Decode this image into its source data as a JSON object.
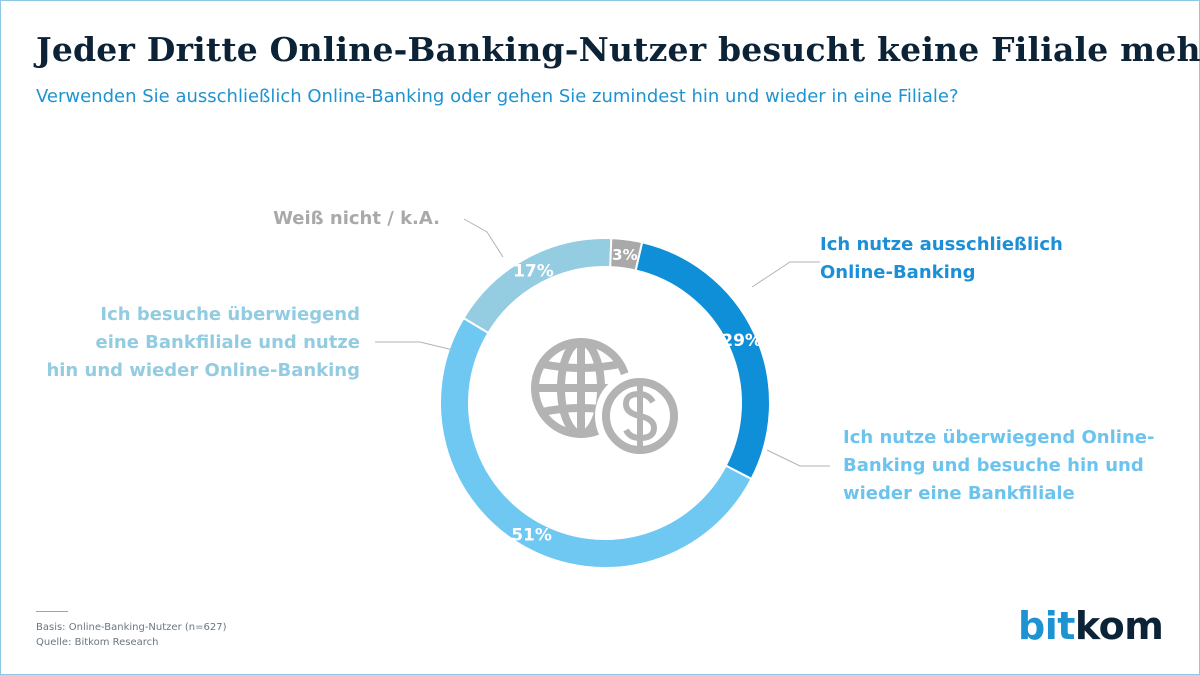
{
  "title": "Jeder Dritte Online-Banking-Nutzer besucht keine Filiale mehr",
  "subtitle": "Verwenden Sie ausschließlich Online-Banking oder gehen Sie zumindest hin und wieder in eine Filiale?",
  "chart_data": {
    "type": "pie",
    "style": "donut",
    "title": "Jeder Dritte Online-Banking-Nutzer besucht keine Filiale mehr",
    "subtitle": "Verwenden Sie ausschließlich Online-Banking oder gehen Sie zumindest hin und wieder in eine Filiale?",
    "unit": "%",
    "center_icon": "globe-dollar-icon",
    "slices": [
      {
        "key": "online",
        "label": "Ich nutze ausschließlich Online-Banking",
        "lines": [
          "Ich nutze ausschließlich",
          "Online-Banking"
        ],
        "value": 29,
        "value_label": "29%",
        "color": "#0f8fd8"
      },
      {
        "key": "mostly_online",
        "label": "Ich nutze überwiegend Online-Banking und besuche hin und wieder eine Bankfiliale",
        "lines": [
          "Ich nutze überwiegend Online-",
          "Banking und besuche hin und",
          "wieder eine Bankfiliale"
        ],
        "value": 51,
        "value_label": "51%",
        "color": "#6ec8f2"
      },
      {
        "key": "mostly_branch",
        "label": "Ich besuche überwiegend eine Bankfiliale und nutze hin und wieder Online-Banking",
        "lines": [
          "Ich besuche überwiegend",
          "eine Bankfiliale und nutze",
          "hin und wieder Online-Banking"
        ],
        "value": 17,
        "value_label": "17%",
        "color": "#94cce2"
      },
      {
        "key": "dk",
        "label": "Weiß nicht / k.A.",
        "lines": [
          "Weiß nicht / k.A."
        ],
        "value": 3,
        "value_label": "3%",
        "color": "#a9a9a9"
      }
    ]
  },
  "footer": {
    "basis": "Basis: Online-Banking-Nutzer (n=627)",
    "source": "Quelle: Bitkom Research"
  },
  "logo": {
    "part1": "bit",
    "part2": "kom"
  }
}
